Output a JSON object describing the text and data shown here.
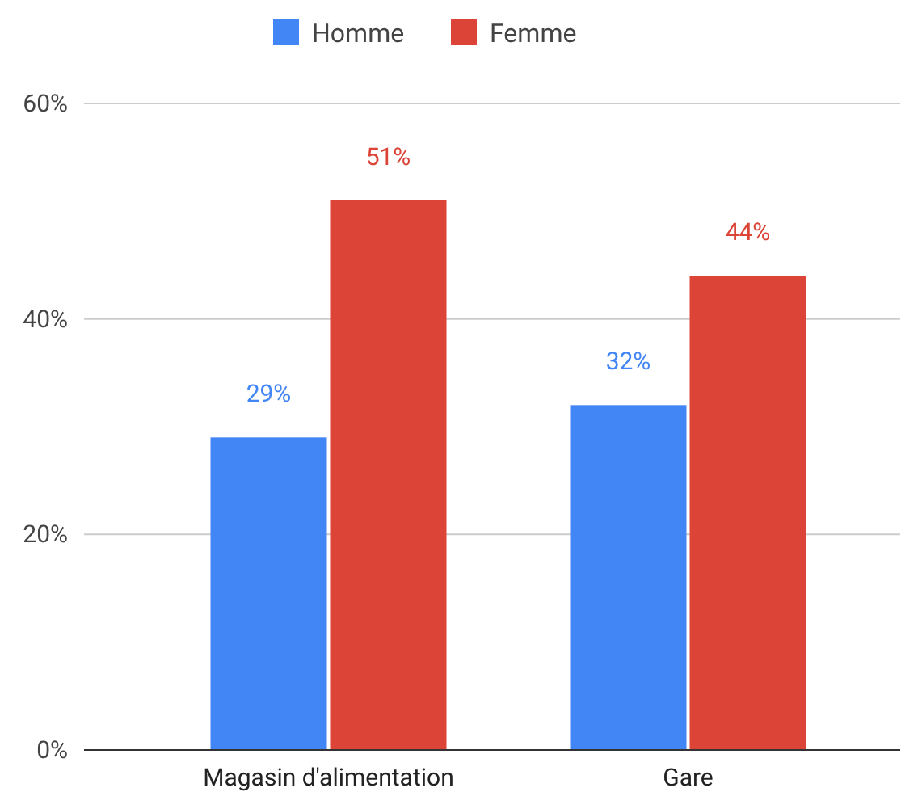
{
  "chart_data": {
    "type": "bar",
    "categories": [
      "Magasin d'alimentation",
      "Gare"
    ],
    "series": [
      {
        "name": "Homme",
        "color": "#4285f4",
        "values": [
          29,
          32
        ],
        "value_labels": [
          "29%",
          "32%"
        ]
      },
      {
        "name": "Femme",
        "color": "#db4437",
        "values": [
          51,
          44
        ],
        "value_labels": [
          "51%",
          "44%"
        ]
      }
    ],
    "ylim": [
      0,
      60
    ],
    "yticks": [
      {
        "value": 0,
        "label": "0%"
      },
      {
        "value": 20,
        "label": "20%"
      },
      {
        "value": 40,
        "label": "40%"
      },
      {
        "value": 60,
        "label": "60%"
      }
    ],
    "grid": "y",
    "legend": "top"
  }
}
